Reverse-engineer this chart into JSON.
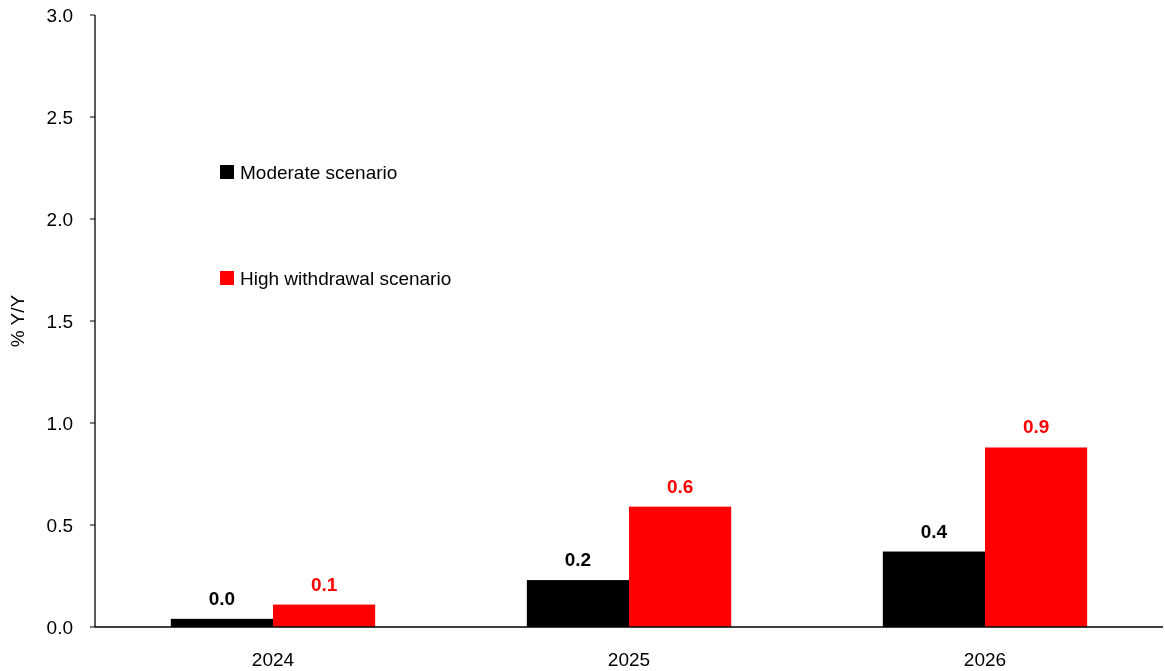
{
  "chart_data": {
    "type": "bar",
    "ylabel": "% Y/Y",
    "categories": [
      "2024",
      "2025",
      "2026"
    ],
    "series": [
      {
        "name": "Moderate scenario",
        "color": "#000000",
        "values": [
          0.04,
          0.23,
          0.37
        ],
        "value_labels": [
          "0.0",
          "0.2",
          "0.4"
        ]
      },
      {
        "name": "High withdrawal scenario",
        "color": "#ff0000",
        "values": [
          0.11,
          0.59,
          0.88
        ],
        "value_labels": [
          "0.1",
          "0.6",
          "0.9"
        ]
      }
    ],
    "ylim": [
      0,
      3
    ],
    "yticks": [
      {
        "value": 0,
        "label": "0.0"
      },
      {
        "value": 0.5,
        "label": "0.5"
      },
      {
        "value": 1,
        "label": "1.0"
      },
      {
        "value": 1.5,
        "label": "1.5"
      },
      {
        "value": 2,
        "label": "2.0"
      },
      {
        "value": 2.5,
        "label": "2.5"
      },
      {
        "value": 3,
        "label": "3.0"
      }
    ],
    "grid": false,
    "legend": "top left"
  }
}
